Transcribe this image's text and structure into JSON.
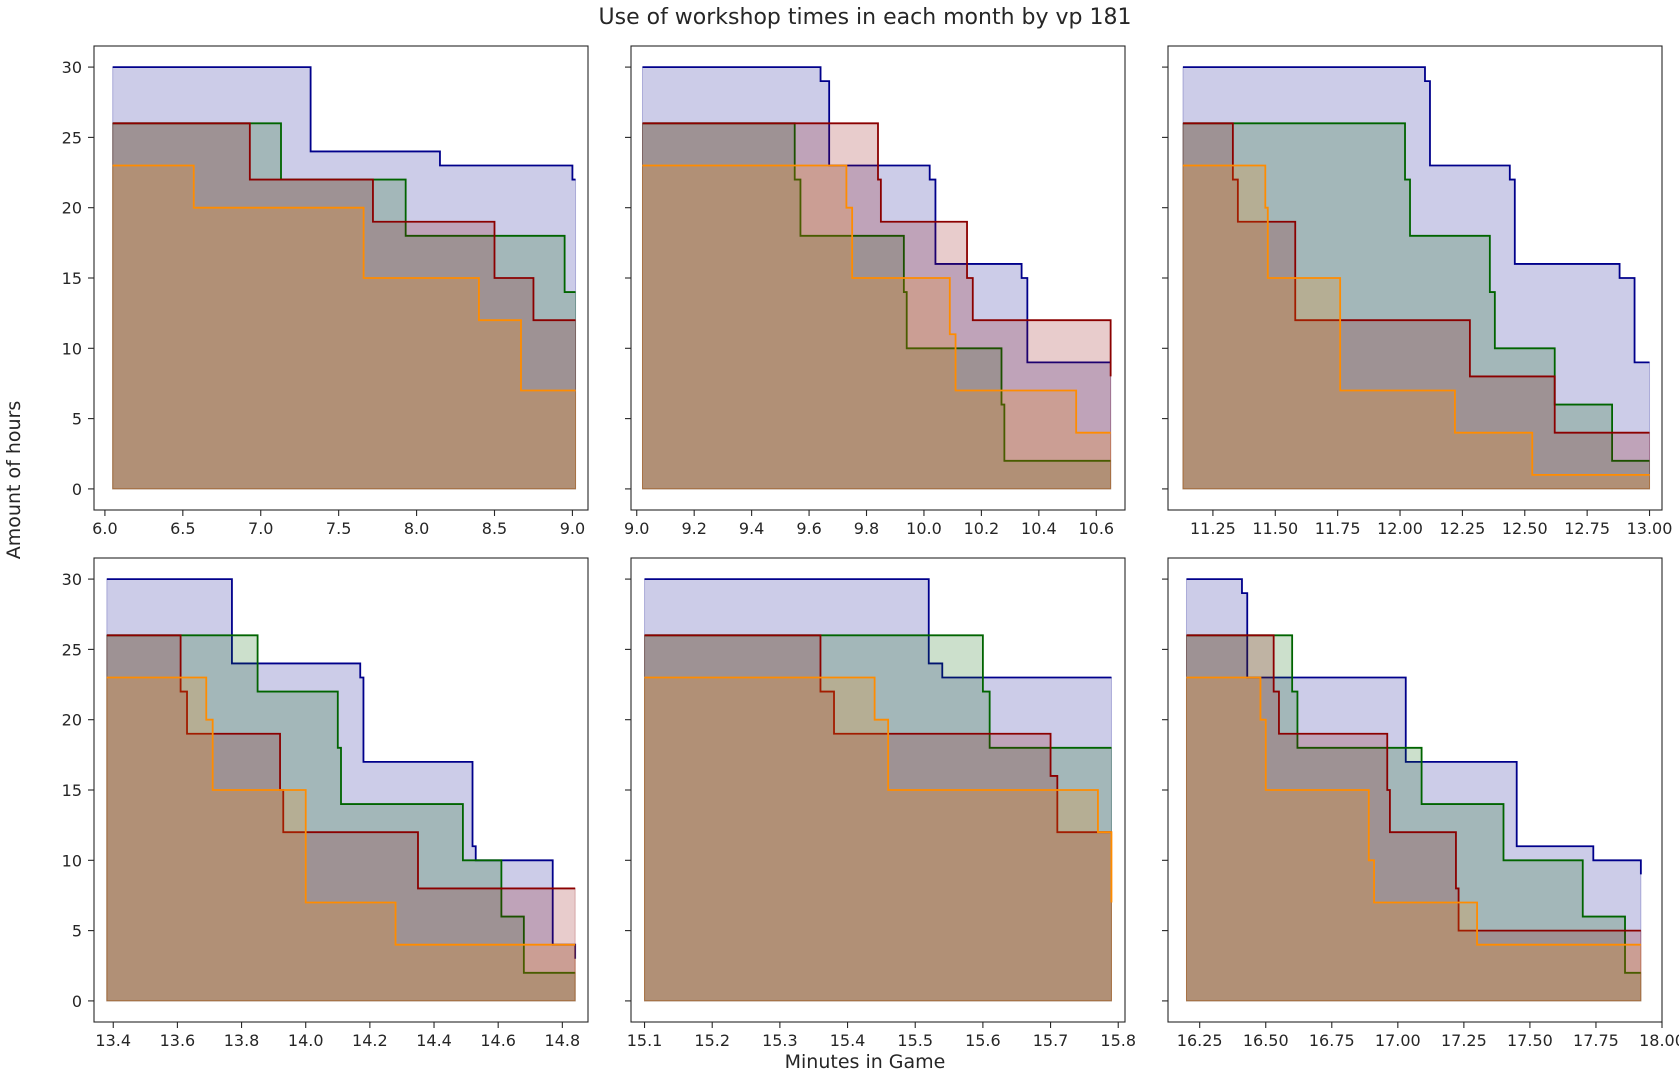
{
  "figure": {
    "title": "Use of workshop times in each month by vp 181",
    "xlabel": "Minutes in Game",
    "ylabel": "Amount of hours"
  },
  "colors": {
    "blue": "#00008b",
    "green": "#006400",
    "red": "#8b0000",
    "orange": "#ff8c00"
  },
  "chart_data": [
    {
      "type": "area",
      "grid": false,
      "xlim": [
        5.93,
        9.1
      ],
      "ylim": [
        -1.5,
        31.5
      ],
      "xticks": [
        6.0,
        6.5,
        7.0,
        7.5,
        8.0,
        8.5,
        9.0
      ],
      "xtick_labels": [
        "6.0",
        "6.5",
        "7.0",
        "7.5",
        "8.0",
        "8.5",
        "9.0"
      ],
      "yticks": [
        0,
        5,
        10,
        15,
        20,
        25,
        30
      ],
      "ytick_labels": [
        "0",
        "5",
        "10",
        "15",
        "20",
        "25",
        "30"
      ],
      "series": [
        {
          "color": "blue",
          "x": [
            6.05,
            7.32,
            8.15,
            9.0,
            9.02
          ],
          "y": [
            30,
            24,
            23,
            22,
            22
          ]
        },
        {
          "color": "green",
          "x": [
            6.05,
            6.92,
            7.13,
            7.93,
            8.95,
            9.02
          ],
          "y": [
            26,
            26,
            22,
            18,
            14,
            14
          ]
        },
        {
          "color": "red",
          "x": [
            6.05,
            6.93,
            7.72,
            8.5,
            8.75,
            9.02
          ],
          "y": [
            26,
            22,
            19,
            15,
            12,
            12
          ]
        },
        {
          "color": "orange",
          "x": [
            6.05,
            6.57,
            7.66,
            8.4,
            8.67,
            9.02
          ],
          "y": [
            23,
            20,
            15,
            12,
            7,
            7
          ]
        }
      ]
    },
    {
      "type": "area",
      "grid": false,
      "xlim": [
        8.98,
        10.7
      ],
      "ylim": [
        -1.5,
        31.5
      ],
      "xticks": [
        9.0,
        9.2,
        9.4,
        9.6,
        9.8,
        10.0,
        10.2,
        10.4,
        10.6
      ],
      "xtick_labels": [
        "9.0",
        "9.2",
        "9.4",
        "9.6",
        "9.8",
        "10.0",
        "10.2",
        "10.4",
        "10.6"
      ],
      "yticks": [
        0,
        5,
        10,
        15,
        20,
        25,
        30
      ],
      "ytick_labels": [
        "0",
        "5",
        "10",
        "15",
        "20",
        "25",
        "30"
      ],
      "series": [
        {
          "color": "blue",
          "x": [
            9.02,
            9.64,
            9.67,
            10.02,
            10.04,
            10.34,
            10.36,
            10.65
          ],
          "y": [
            30,
            29,
            23,
            22,
            16,
            15,
            9,
            9
          ]
        },
        {
          "color": "green",
          "x": [
            9.02,
            9.55,
            9.57,
            9.93,
            9.94,
            10.27,
            10.28,
            10.65
          ],
          "y": [
            26,
            22,
            18,
            14,
            10,
            6,
            2,
            2
          ]
        },
        {
          "color": "red",
          "x": [
            9.02,
            9.84,
            9.85,
            10.15,
            10.17,
            10.65
          ],
          "y": [
            26,
            22,
            19,
            15,
            12,
            8
          ]
        },
        {
          "color": "orange",
          "x": [
            9.02,
            9.73,
            9.75,
            10.09,
            10.11,
            10.53,
            10.65
          ],
          "y": [
            23,
            20,
            15,
            11,
            7,
            4,
            4
          ]
        }
      ]
    },
    {
      "type": "area",
      "grid": false,
      "xlim": [
        11.07,
        13.05
      ],
      "ylim": [
        -1.5,
        31.5
      ],
      "xticks": [
        11.25,
        11.5,
        11.75,
        12.0,
        12.25,
        12.5,
        12.75,
        13.0
      ],
      "xtick_labels": [
        "11.25",
        "11.50",
        "11.75",
        "12.00",
        "12.25",
        "12.50",
        "12.75",
        "13.00"
      ],
      "yticks": [
        0,
        5,
        10,
        15,
        20,
        25,
        30
      ],
      "ytick_labels": [
        "0",
        "5",
        "10",
        "15",
        "20",
        "25",
        "30"
      ],
      "series": [
        {
          "color": "blue",
          "x": [
            11.13,
            12.1,
            12.12,
            12.44,
            12.46,
            12.88,
            12.94,
            12.99,
            13.0
          ],
          "y": [
            30,
            29,
            23,
            22,
            16,
            15,
            9,
            9,
            9
          ]
        },
        {
          "color": "green",
          "x": [
            11.13,
            12.02,
            12.04,
            12.36,
            12.38,
            12.62,
            12.85,
            13.0
          ],
          "y": [
            26,
            22,
            18,
            14,
            10,
            6,
            2,
            2
          ]
        },
        {
          "color": "red",
          "x": [
            11.13,
            11.33,
            11.35,
            11.58,
            12.28,
            12.62,
            13.0
          ],
          "y": [
            26,
            22,
            19,
            12,
            8,
            4,
            4
          ]
        },
        {
          "color": "orange",
          "x": [
            11.13,
            11.46,
            11.47,
            11.76,
            12.22,
            12.53,
            13.0
          ],
          "y": [
            23,
            20,
            15,
            7,
            4,
            1,
            1
          ]
        }
      ]
    },
    {
      "type": "area",
      "grid": false,
      "xlim": [
        13.34,
        14.88
      ],
      "ylim": [
        -1.5,
        31.5
      ],
      "xticks": [
        13.4,
        13.6,
        13.8,
        14.0,
        14.2,
        14.4,
        14.6,
        14.8
      ],
      "xtick_labels": [
        "13.4",
        "13.6",
        "13.8",
        "14.0",
        "14.2",
        "14.4",
        "14.6",
        "14.8"
      ],
      "yticks": [
        0,
        5,
        10,
        15,
        20,
        25,
        30
      ],
      "ytick_labels": [
        "0",
        "5",
        "10",
        "15",
        "20",
        "25",
        "30"
      ],
      "series": [
        {
          "color": "blue",
          "x": [
            13.38,
            13.77,
            14.17,
            14.18,
            14.52,
            14.53,
            14.77,
            14.84
          ],
          "y": [
            30,
            24,
            23,
            17,
            11,
            10,
            4,
            3
          ]
        },
        {
          "color": "green",
          "x": [
            13.38,
            13.85,
            14.1,
            14.11,
            14.49,
            14.61,
            14.68,
            14.84
          ],
          "y": [
            26,
            22,
            18,
            14,
            10,
            6,
            2,
            2
          ]
        },
        {
          "color": "red",
          "x": [
            13.38,
            13.61,
            13.63,
            13.92,
            13.93,
            14.35,
            14.84
          ],
          "y": [
            26,
            22,
            19,
            15,
            12,
            8,
            8
          ]
        },
        {
          "color": "orange",
          "x": [
            13.38,
            13.69,
            13.71,
            14.0,
            14.28,
            14.84
          ],
          "y": [
            23,
            20,
            15,
            7,
            4,
            4
          ]
        }
      ]
    },
    {
      "type": "area",
      "grid": false,
      "xlim": [
        15.08,
        15.81
      ],
      "ylim": [
        -1.5,
        31.5
      ],
      "xticks": [
        15.1,
        15.2,
        15.3,
        15.4,
        15.5,
        15.6,
        15.7,
        15.8
      ],
      "xtick_labels": [
        "15.1",
        "15.2",
        "15.3",
        "15.4",
        "15.5",
        "15.6",
        "15.7",
        "15.8"
      ],
      "yticks": [
        0,
        5,
        10,
        15,
        20,
        25,
        30
      ],
      "ytick_labels": [
        "0",
        "5",
        "10",
        "15",
        "20",
        "25",
        "30"
      ],
      "series": [
        {
          "color": "blue",
          "x": [
            15.1,
            15.52,
            15.54,
            15.79
          ],
          "y": [
            30,
            24,
            23,
            23
          ]
        },
        {
          "color": "green",
          "x": [
            15.1,
            15.6,
            15.61,
            15.79
          ],
          "y": [
            26,
            22,
            18,
            18
          ]
        },
        {
          "color": "red",
          "x": [
            15.1,
            15.36,
            15.38,
            15.7,
            15.71,
            15.79
          ],
          "y": [
            26,
            22,
            19,
            16,
            12,
            12
          ]
        },
        {
          "color": "orange",
          "x": [
            15.1,
            15.44,
            15.46,
            15.77,
            15.79
          ],
          "y": [
            23,
            20,
            15,
            12,
            7
          ]
        }
      ]
    },
    {
      "type": "area",
      "grid": false,
      "xlim": [
        16.13,
        18.0
      ],
      "ylim": [
        -1.5,
        31.5
      ],
      "xticks": [
        16.25,
        16.5,
        16.75,
        17.0,
        17.25,
        17.5,
        17.75,
        18.0
      ],
      "xtick_labels": [
        "16.25",
        "16.50",
        "16.75",
        "17.00",
        "17.25",
        "17.50",
        "17.75",
        "18.00"
      ],
      "yticks": [
        0,
        5,
        10,
        15,
        20,
        25,
        30
      ],
      "ytick_labels": [
        "0",
        "5",
        "10",
        "15",
        "20",
        "25",
        "30"
      ],
      "series": [
        {
          "color": "blue",
          "x": [
            16.2,
            16.41,
            16.43,
            17.03,
            17.45,
            17.74,
            17.92
          ],
          "y": [
            30,
            29,
            23,
            17,
            11,
            10,
            9
          ]
        },
        {
          "color": "green",
          "x": [
            16.2,
            16.6,
            16.62,
            17.09,
            17.4,
            17.7,
            17.86,
            17.92
          ],
          "y": [
            26,
            22,
            18,
            14,
            10,
            6,
            2,
            2
          ]
        },
        {
          "color": "red",
          "x": [
            16.2,
            16.53,
            16.55,
            16.96,
            16.97,
            17.22,
            17.23,
            17.92
          ],
          "y": [
            26,
            22,
            19,
            15,
            12,
            8,
            5,
            5
          ]
        },
        {
          "color": "orange",
          "x": [
            16.2,
            16.48,
            16.5,
            16.89,
            16.91,
            17.3,
            17.92
          ],
          "y": [
            23,
            20,
            15,
            10,
            7,
            4,
            4
          ]
        }
      ]
    }
  ]
}
